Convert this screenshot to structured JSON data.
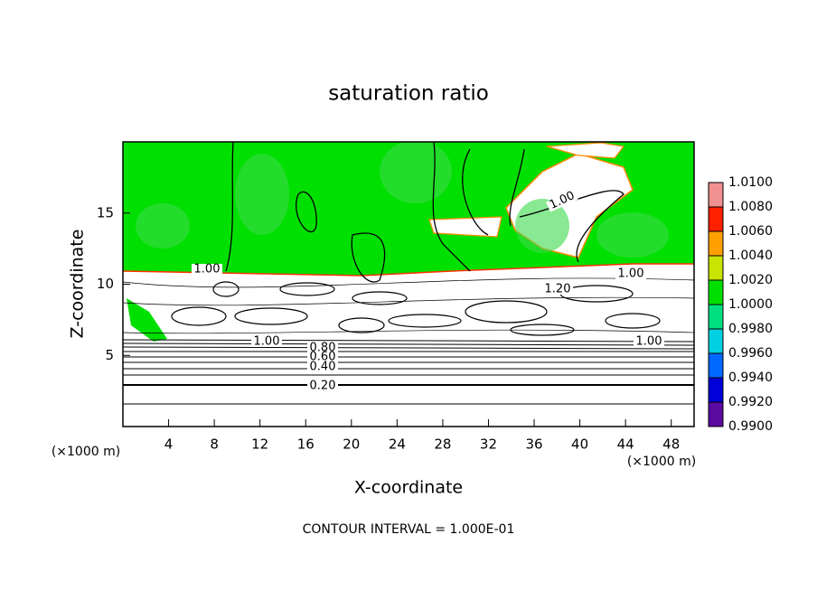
{
  "chart_data": {
    "type": "contour",
    "title": "saturation ratio",
    "x_label": "X-coordinate",
    "y_label": "Z-coordinate",
    "x_unit": "(×1000 m)",
    "y_unit": "(×1000 m)",
    "annotation": "CONTOUR INTERVAL = 1.000E-01",
    "xlim": [
      0,
      50
    ],
    "xticks": [
      4,
      8,
      12,
      16,
      20,
      24,
      28,
      32,
      36,
      40,
      44,
      48
    ],
    "ylim": [
      0,
      20
    ],
    "yticks": [
      5,
      10,
      15
    ],
    "contour_labels": [
      "1.00",
      "1.00",
      "1.00",
      "1.20",
      "1.00",
      "1.00",
      "0.80",
      "0.60",
      "0.40",
      "0.20"
    ],
    "colorbar": {
      "lim": [
        0.99,
        1.01
      ],
      "ticks": [
        {
          "value": 0.99,
          "label": "0.9900"
        },
        {
          "value": 0.992,
          "label": "0.9920"
        },
        {
          "value": 0.994,
          "label": "0.9940"
        },
        {
          "value": 0.996,
          "label": "0.9960"
        },
        {
          "value": 0.998,
          "label": "0.9980"
        },
        {
          "value": 1.0,
          "label": "1.0000"
        },
        {
          "value": 1.002,
          "label": "1.0020"
        },
        {
          "value": 1.004,
          "label": "1.0040"
        },
        {
          "value": 1.006,
          "label": "1.0060"
        },
        {
          "value": 1.008,
          "label": "1.0080"
        },
        {
          "value": 1.01,
          "label": "1.0100"
        }
      ],
      "colors": [
        "#5a0aa0",
        "#0000d8",
        "#0068ff",
        "#00d0e0",
        "#00e080",
        "#00e000",
        "#c8e400",
        "#ffa000",
        "#ff2000",
        "#f09090"
      ]
    }
  }
}
